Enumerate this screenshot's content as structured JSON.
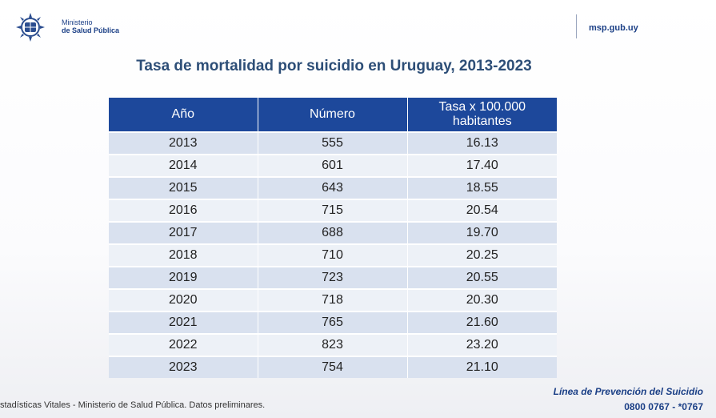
{
  "header": {
    "org_line1": "Ministerio",
    "org_line2": "de Salud Pública",
    "website": "msp.gub.uy"
  },
  "title": "Tasa de mortalidad por suicidio en Uruguay, 2013-2023",
  "table": {
    "columns": [
      "Año",
      "Número",
      "Tasa x 100.000 habitantes"
    ],
    "rows": [
      [
        "2013",
        "555",
        "16.13"
      ],
      [
        "2014",
        "601",
        "17.40"
      ],
      [
        "2015",
        "643",
        "18.55"
      ],
      [
        "2016",
        "715",
        "20.54"
      ],
      [
        "2017",
        "688",
        "19.70"
      ],
      [
        "2018",
        "710",
        "20.25"
      ],
      [
        "2019",
        "723",
        "20.55"
      ],
      [
        "2020",
        "718",
        "20.30"
      ],
      [
        "2021",
        "765",
        "21.60"
      ],
      [
        "2022",
        "823",
        "23.20"
      ],
      [
        "2023",
        "754",
        "21.10"
      ]
    ]
  },
  "footer": {
    "source": "stadísticas Vitales - Ministerio de Salud Pública. Datos preliminares.",
    "hotline_title": "Línea de Prevención del Suicidio",
    "hotline_numbers": "0800 0767 - *0767"
  },
  "colors": {
    "header_blue": "#1d489b",
    "title_color": "#2d4e77",
    "brand_blue": "#1b3f86"
  },
  "icons": {
    "logo": "uruguay-coat-of-arms-icon"
  }
}
